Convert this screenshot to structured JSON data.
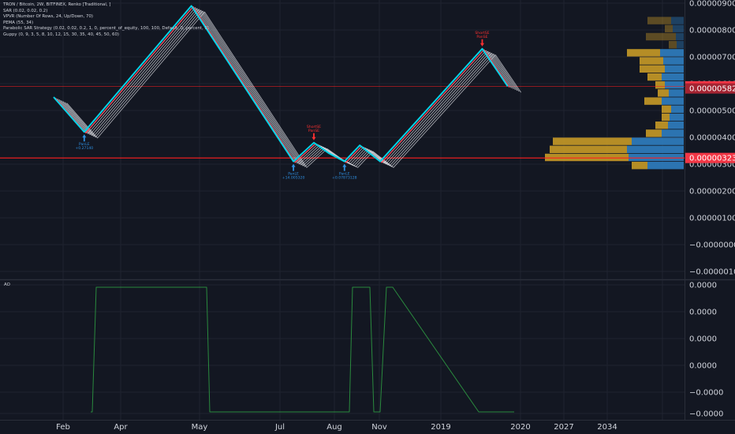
{
  "header": {
    "symbol_line": "TRON / Bitcoin, 2W, BITFINEX, Renko [Traditional, ]",
    "studies": [
      "SAR (0.02, 0.02, 0.2)",
      "VPVR (Number Of Rows, 24, Up/Down, 70)",
      "PEMA (55, 34)",
      "Parabolic SAR Strategy (0.02, 0.02, 0.2, 1, 0, percent_of_equity, 100, 100, Default, 0, percent, 0)",
      "Guppy (0, 9, 3, 5, 8, 10, 12, 15, 30, 35, 40, 45, 50, 60)"
    ]
  },
  "ao_panel": {
    "label": "AO"
  },
  "colors": {
    "background": "#131722",
    "price_line": "#00d4e8",
    "ema_fast": "#ff4d5e",
    "guppy": "#e4e6eb",
    "vp_up": "#2f7fc1",
    "vp_down": "#c79a27",
    "ao_line": "#2a8a3e",
    "alert_line": "#ff1f1f",
    "badge_red": "#f23645",
    "badge_dark_red": "#a42432",
    "signal_up": "#2e8fe0",
    "signal_down": "#ff3030"
  },
  "chart_data": [
    {
      "type": "line",
      "name": "main",
      "price_axis_ticks": [
        "0.00000900",
        "0.00000800",
        "0.00000700",
        "0.00000600",
        "0.00000500",
        "0.00000400",
        "0.00000300",
        "0.00000200",
        "0.00000100",
        "−0.00000000",
        "−0.00000100"
      ],
      "ylim": [
        -1e-06,
        9e-06
      ],
      "time_axis_labels": [
        "Feb",
        "Apr",
        "May",
        "Jul",
        "Aug",
        "Nov",
        "2019",
        "2020",
        "2027",
        "2034"
      ],
      "price_badges": [
        {
          "label": "0.00000590",
          "value": 5.9e-06,
          "color": "badge_red"
        },
        {
          "label": "0.00000582",
          "value": 5.82e-06,
          "color": "badge_dark_red"
        },
        {
          "label": "0.00000323",
          "value": 3.23e-06,
          "color": "badge_red"
        }
      ],
      "horizontal_lines": [
        3.23e-06,
        5.9e-06
      ],
      "series": [
        {
          "role": "price",
          "points": [
            [
              0,
              5.5e-06
            ],
            [
              6,
              4.2e-06
            ],
            [
              27,
              8.9e-06
            ],
            [
              47,
              3.1e-06
            ],
            [
              51,
              3.8e-06
            ],
            [
              54,
              3.4e-06
            ],
            [
              57,
              3.1e-06
            ],
            [
              60,
              3.7e-06
            ],
            [
              64,
              3.1e-06
            ],
            [
              84,
              7.3e-06
            ],
            [
              89,
              5.9e-06
            ]
          ]
        }
      ],
      "volume_profile": [
        {
          "price_low": 8.2e-06,
          "price_high": 8.5e-06,
          "up": 16,
          "down": 30
        },
        {
          "price_low": 7.9e-06,
          "price_high": 8.2e-06,
          "up": 14,
          "down": 10
        },
        {
          "price_low": 7.6e-06,
          "price_high": 7.9e-06,
          "up": 10,
          "down": 38
        },
        {
          "price_low": 7.3e-06,
          "price_high": 7.6e-06,
          "up": 9,
          "down": 10
        },
        {
          "price_low": 7e-06,
          "price_high": 7.3e-06,
          "up": 30,
          "down": 42
        },
        {
          "price_low": 6.7e-06,
          "price_high": 7e-06,
          "up": 26,
          "down": 30
        },
        {
          "price_low": 6.4e-06,
          "price_high": 6.7e-06,
          "up": 24,
          "down": 32
        },
        {
          "price_low": 6.1e-06,
          "price_high": 6.4e-06,
          "up": 28,
          "down": 18
        },
        {
          "price_low": 5.8e-06,
          "price_high": 6.1e-06,
          "up": 24,
          "down": 12
        },
        {
          "price_low": 5.5e-06,
          "price_high": 5.8e-06,
          "up": 19,
          "down": 14
        },
        {
          "price_low": 5.2e-06,
          "price_high": 5.5e-06,
          "up": 28,
          "down": 22
        },
        {
          "price_low": 4.9e-06,
          "price_high": 5.2e-06,
          "up": 16,
          "down": 12
        },
        {
          "price_low": 4.6e-06,
          "price_high": 4.9e-06,
          "up": 18,
          "down": 10
        },
        {
          "price_low": 4.3e-06,
          "price_high": 4.6e-06,
          "up": 20,
          "down": 16
        },
        {
          "price_low": 4e-06,
          "price_high": 4.3e-06,
          "up": 28,
          "down": 20
        },
        {
          "price_low": 3.7e-06,
          "price_high": 4e-06,
          "up": 66,
          "down": 100
        },
        {
          "price_low": 3.4e-06,
          "price_high": 3.7e-06,
          "up": 72,
          "down": 98
        },
        {
          "price_low": 3.1e-06,
          "price_high": 3.4e-06,
          "up": 70,
          "down": 106
        },
        {
          "price_low": 2.8e-06,
          "price_high": 3.1e-06,
          "up": 46,
          "down": 20
        }
      ],
      "signals": [
        {
          "index": 6,
          "value": 4.2e-06,
          "dir": "up",
          "label": "PanLE",
          "sub": "+0.27140"
        },
        {
          "index": 47,
          "value": 3.1e-06,
          "dir": "up",
          "label": "PanLE",
          "sub": "+14.005320"
        },
        {
          "index": 51,
          "value": 3.8e-06,
          "dir": "down",
          "label": "ShortSE",
          "sub": "PanSE"
        },
        {
          "index": 57,
          "value": 3.1e-06,
          "dir": "up",
          "label": "PanLE",
          "sub": "+0.07873128"
        },
        {
          "index": 84,
          "value": 7.3e-06,
          "dir": "down",
          "label": "ShortSE",
          "sub": "PanSE"
        }
      ]
    },
    {
      "type": "line",
      "name": "AO",
      "ao_axis_ticks": [
        "0.0000",
        "0.0000",
        "0.0000",
        "0.0000",
        "−0.0000",
        "−0.0000"
      ],
      "ylim": [
        -1,
        1
      ],
      "series": [
        {
          "role": "ao",
          "points": [
            [
              0,
              -1
            ],
            [
              6,
              -1
            ],
            [
              7,
              1
            ],
            [
              29,
              1
            ],
            [
              30,
              -1
            ],
            [
              47,
              -1
            ],
            [
              48,
              1
            ],
            [
              51,
              1
            ],
            [
              52,
              -1
            ],
            [
              54,
              -1
            ],
            [
              55,
              1
            ],
            [
              80,
              1
            ],
            [
              82,
              -1
            ],
            [
              89,
              -1
            ]
          ]
        }
      ]
    }
  ]
}
